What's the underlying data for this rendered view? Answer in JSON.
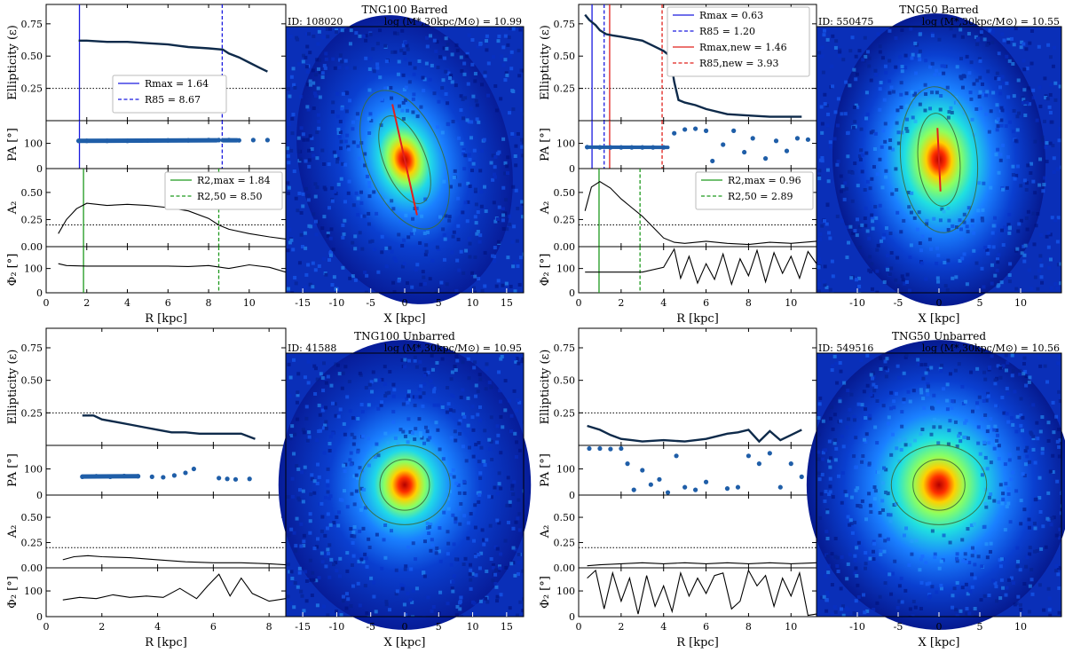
{
  "chart_data": [
    {
      "panel": "TNG100 Barred",
      "type": "line",
      "id_label": "ID: 108020",
      "mass_label": "log (M*,30kpc/M⊙) = 10.99",
      "xlabel": "R [kpc]",
      "xlim": [
        0,
        11.8
      ],
      "xticks": [
        0,
        2,
        4,
        6,
        8,
        10
      ],
      "image_xlabel": "X [kpc]",
      "image_xlim": [
        -17.5,
        17.5
      ],
      "image_xticks": [
        -15,
        -10,
        -5,
        0,
        5,
        10,
        15
      ],
      "ellipticity": {
        "ylabel": "Ellipticity (ε)",
        "ylim": [
          0,
          0.9
        ],
        "yticks": [
          0.25,
          0.5,
          0.75
        ],
        "hline": 0.25,
        "r": [
          1.6,
          2,
          3,
          4,
          5,
          6,
          6.5,
          7,
          8,
          8.7,
          9,
          9.5,
          10,
          10.5,
          10.9
        ],
        "values": [
          0.62,
          0.62,
          0.61,
          0.61,
          0.6,
          0.59,
          0.58,
          0.57,
          0.56,
          0.55,
          0.52,
          0.49,
          0.45,
          0.41,
          0.38
        ],
        "legend": [
          "Rmax = 1.64",
          "R85 = 8.67"
        ]
      },
      "pa": {
        "ylabel": "PA [°]",
        "ylim": [
          0,
          190
        ],
        "yticks": [
          0,
          100
        ],
        "r": [
          1.6,
          2,
          3,
          4,
          5,
          6,
          7,
          8,
          8.5,
          9,
          9.5,
          10.2,
          10.9
        ],
        "values": [
          110,
          110,
          110,
          110,
          111,
          112,
          112,
          113,
          113,
          113,
          112,
          113,
          113
        ]
      },
      "a2": {
        "ylabel": "A2",
        "ylim": [
          0,
          0.72
        ],
        "yticks": [
          0,
          0.25,
          0.5
        ],
        "hline": 0.2,
        "r": [
          0.6,
          1,
          1.5,
          2,
          2.5,
          3,
          4,
          5,
          6,
          7,
          8,
          8.5,
          9,
          10,
          11,
          11.8
        ],
        "values": [
          0.12,
          0.25,
          0.35,
          0.4,
          0.39,
          0.38,
          0.39,
          0.38,
          0.36,
          0.33,
          0.26,
          0.2,
          0.16,
          0.12,
          0.09,
          0.07
        ],
        "legend": [
          "R2,max = 1.84",
          "R2,50 = 8.50"
        ]
      },
      "phi2": {
        "ylabel": "Φ2 [°]",
        "ylim": [
          0,
          190
        ],
        "yticks": [
          0,
          100
        ],
        "r": [
          0.6,
          1,
          2,
          3,
          4,
          5,
          6,
          7,
          8,
          9,
          10,
          11,
          11.8
        ],
        "values": [
          120,
          112,
          110,
          110,
          110,
          110,
          110,
          108,
          112,
          100,
          115,
          105,
          85
        ]
      },
      "lines": {
        "rmax": 1.64,
        "r85": 8.67,
        "r2max": 1.84,
        "r250": 8.5
      },
      "image": {
        "bar_angle_deg": 68,
        "bar_half_len": 8.8,
        "ellipticity": 0.55
      }
    },
    {
      "panel": "TNG50 Barred",
      "type": "line",
      "id_label": "ID: 550475",
      "mass_label": "log (M*,30kpc/M⊙) = 10.55",
      "xlabel": "R [kpc]",
      "xlim": [
        0,
        11.2
      ],
      "xticks": [
        0,
        2,
        4,
        6,
        8,
        10
      ],
      "image_xlabel": "X [kpc]",
      "image_xlim": [
        -15,
        15
      ],
      "image_xticks": [
        -10,
        -5,
        0,
        5,
        10
      ],
      "ellipticity": {
        "ylabel": "Ellipticity (ε)",
        "ylim": [
          0,
          0.9
        ],
        "yticks": [
          0.25,
          0.5,
          0.75
        ],
        "hline": 0.25,
        "r": [
          0.3,
          0.5,
          0.8,
          1,
          1.3,
          1.6,
          2,
          3,
          3.5,
          4,
          4.3,
          4.5,
          4.7,
          5,
          5.5,
          6,
          7,
          8,
          9,
          10,
          10.5
        ],
        "values": [
          0.82,
          0.78,
          0.74,
          0.7,
          0.67,
          0.66,
          0.65,
          0.62,
          0.58,
          0.54,
          0.5,
          0.3,
          0.16,
          0.14,
          0.12,
          0.09,
          0.05,
          0.04,
          0.03,
          0.03,
          0.03
        ],
        "legend": [
          "Rmax = 0.63",
          "R85 = 1.20",
          "Rmax,new = 1.46",
          "R85,new = 3.93"
        ]
      },
      "pa": {
        "ylabel": "PA [°]",
        "ylim": [
          0,
          190
        ],
        "yticks": [
          0,
          100
        ],
        "r": [
          0.4,
          1,
          1.5,
          2,
          2.5,
          3,
          3.5,
          4,
          4.5,
          5,
          5.5,
          6,
          6.3,
          6.8,
          7.3,
          7.8,
          8.2,
          8.8,
          9.3,
          9.8,
          10.3,
          10.8
        ],
        "values": [
          85,
          84,
          84,
          84,
          84,
          84,
          84,
          84,
          140,
          155,
          158,
          150,
          30,
          95,
          150,
          65,
          120,
          40,
          110,
          70,
          120,
          115
        ]
      },
      "a2": {
        "ylabel": "A2",
        "ylim": [
          0,
          0.72
        ],
        "yticks": [
          0,
          0.25,
          0.5
        ],
        "hline": 0.2,
        "r": [
          0.3,
          0.6,
          1,
          1.5,
          2,
          2.5,
          3,
          3.5,
          4,
          4.5,
          5,
          6,
          7,
          8,
          9,
          10,
          11.2
        ],
        "values": [
          0.33,
          0.55,
          0.6,
          0.54,
          0.44,
          0.36,
          0.28,
          0.18,
          0.08,
          0.04,
          0.03,
          0.05,
          0.03,
          0.02,
          0.04,
          0.03,
          0.05
        ],
        "legend": [
          "R2,max = 0.96",
          "R2,50 = 2.89"
        ]
      },
      "phi2": {
        "ylabel": "Φ2 [°]",
        "ylim": [
          0,
          190
        ],
        "yticks": [
          0,
          100
        ],
        "r": [
          0.3,
          1,
          2,
          3,
          4,
          4.5,
          4.8,
          5.2,
          5.6,
          6,
          6.4,
          6.8,
          7.2,
          7.6,
          8,
          8.4,
          8.8,
          9.2,
          9.6,
          10,
          10.4,
          10.8,
          11.2
        ],
        "values": [
          85,
          85,
          85,
          85,
          105,
          180,
          60,
          150,
          40,
          120,
          55,
          160,
          35,
          140,
          70,
          175,
          45,
          165,
          80,
          150,
          60,
          170,
          120
        ]
      },
      "lines": {
        "rmax": 0.63,
        "r85": 1.2,
        "rmax_new": 1.46,
        "r85_new": 3.93,
        "r2max": 0.96,
        "r250": 2.89
      },
      "image": {
        "bar_angle_deg": 85,
        "bar_half_len": 3.9,
        "ellipticity": 0.6
      }
    },
    {
      "panel": "TNG100 Unbarred",
      "type": "line",
      "id_label": "ID: 41588",
      "mass_label": "log (M*,30kpc/M⊙) = 10.95",
      "xlabel": "R [kpc]",
      "xlim": [
        0,
        8.6
      ],
      "xticks": [
        0,
        2,
        4,
        6,
        8
      ],
      "image_xlabel": "X [kpc]",
      "image_xlim": [
        -17.5,
        17.5
      ],
      "image_xticks": [
        -15,
        -10,
        -5,
        0,
        5,
        10,
        15
      ],
      "ellipticity": {
        "ylabel": "Ellipticity (ε)",
        "ylim": [
          0,
          0.9
        ],
        "yticks": [
          0.25,
          0.5,
          0.75
        ],
        "hline": 0.25,
        "r": [
          1.3,
          1.7,
          2,
          2.5,
          3,
          3.5,
          4,
          4.5,
          5,
          5.5,
          6,
          6.5,
          7,
          7.5
        ],
        "values": [
          0.23,
          0.23,
          0.2,
          0.18,
          0.16,
          0.14,
          0.12,
          0.1,
          0.1,
          0.09,
          0.09,
          0.09,
          0.09,
          0.05
        ],
        "legend": []
      },
      "pa": {
        "ylabel": "PA [°]",
        "ylim": [
          0,
          190
        ],
        "yticks": [
          0,
          100
        ],
        "r": [
          1.3,
          1.8,
          2.3,
          2.8,
          3.3,
          3.8,
          4.2,
          4.6,
          5,
          5.3,
          6.2,
          6.5,
          6.8,
          7.3
        ],
        "values": [
          70,
          72,
          70,
          73,
          72,
          70,
          68,
          75,
          85,
          100,
          65,
          62,
          60,
          62
        ]
      },
      "a2": {
        "ylabel": "A2",
        "ylim": [
          0,
          0.72
        ],
        "yticks": [
          0,
          0.25,
          0.5
        ],
        "hline": 0.2,
        "r": [
          0.6,
          1,
          1.5,
          2,
          3,
          4,
          5,
          6,
          7,
          8,
          8.6
        ],
        "values": [
          0.08,
          0.11,
          0.12,
          0.11,
          0.1,
          0.08,
          0.06,
          0.05,
          0.05,
          0.04,
          0.03
        ],
        "legend": []
      },
      "phi2": {
        "ylabel": "Φ2 [°]",
        "ylim": [
          0,
          190
        ],
        "yticks": [
          0,
          100
        ],
        "r": [
          0.6,
          1.2,
          1.8,
          2.4,
          3,
          3.6,
          4.2,
          4.8,
          5.4,
          5.8,
          6.2,
          6.6,
          7,
          7.4,
          8,
          8.6
        ],
        "values": [
          65,
          75,
          70,
          85,
          75,
          80,
          75,
          110,
          70,
          120,
          165,
          80,
          150,
          90,
          60,
          70
        ]
      },
      "lines": {},
      "image": {
        "bar_angle_deg": 90,
        "bar_half_len": 0,
        "ellipticity": 0.1
      }
    },
    {
      "panel": "TNG50 Unbarred",
      "type": "line",
      "id_label": "ID: 549516",
      "mass_label": "log (M*,30kpc/M⊙) = 10.56",
      "xlabel": "R [kpc]",
      "xlim": [
        0,
        11.2
      ],
      "xticks": [
        0,
        2,
        4,
        6,
        8,
        10
      ],
      "image_xlabel": "X [kpc]",
      "image_xlim": [
        -15,
        15
      ],
      "image_xticks": [
        -10,
        -5,
        0,
        5,
        10
      ],
      "ellipticity": {
        "ylabel": "Ellipticity (ε)",
        "ylim": [
          0,
          0.9
        ],
        "yticks": [
          0.25,
          0.5,
          0.75
        ],
        "hline": 0.25,
        "r": [
          0.4,
          1,
          1.5,
          2,
          2.5,
          3,
          4,
          5,
          6,
          7,
          7.5,
          8,
          8.5,
          9,
          9.5,
          10,
          10.5
        ],
        "values": [
          0.15,
          0.12,
          0.08,
          0.05,
          0.04,
          0.03,
          0.04,
          0.03,
          0.05,
          0.09,
          0.1,
          0.12,
          0.03,
          0.11,
          0.04,
          0.08,
          0.12
        ],
        "legend": []
      },
      "pa": {
        "ylabel": "PA [°]",
        "ylim": [
          0,
          190
        ],
        "yticks": [
          0,
          100
        ],
        "r": [
          0.5,
          1,
          1.5,
          2,
          2.3,
          2.6,
          3,
          3.4,
          3.8,
          4.2,
          4.6,
          5,
          5.5,
          6,
          7,
          7.5,
          8,
          8.5,
          9,
          9.5,
          10,
          10.5
        ],
        "values": [
          178,
          178,
          176,
          178,
          120,
          20,
          95,
          40,
          60,
          10,
          150,
          30,
          20,
          50,
          25,
          30,
          150,
          120,
          160,
          30,
          120,
          70
        ]
      },
      "a2": {
        "ylabel": "A2",
        "ylim": [
          0,
          0.72
        ],
        "yticks": [
          0,
          0.25,
          0.5
        ],
        "hline": 0.2,
        "r": [
          0.4,
          1,
          2,
          3,
          4,
          5,
          6,
          7,
          8,
          9,
          10,
          11.2
        ],
        "values": [
          0.02,
          0.03,
          0.04,
          0.05,
          0.04,
          0.05,
          0.04,
          0.05,
          0.04,
          0.05,
          0.04,
          0.05
        ],
        "legend": []
      },
      "phi2": {
        "ylabel": "Φ2 [°]",
        "ylim": [
          0,
          190
        ],
        "yticks": [
          0,
          100
        ],
        "r": [
          0.4,
          0.8,
          1.2,
          1.6,
          2,
          2.4,
          2.8,
          3.2,
          3.6,
          4,
          4.4,
          4.8,
          5.2,
          5.6,
          6,
          6.4,
          6.8,
          7.2,
          7.6,
          8,
          8.4,
          8.8,
          9.2,
          9.6,
          10,
          10.4,
          10.8,
          11.2
        ],
        "values": [
          150,
          180,
          30,
          170,
          60,
          150,
          10,
          160,
          40,
          120,
          20,
          170,
          80,
          150,
          90,
          160,
          170,
          30,
          60,
          180,
          120,
          160,
          40,
          150,
          80,
          170,
          5,
          10
        ]
      },
      "lines": {},
      "image": {
        "bar_angle_deg": 90,
        "bar_half_len": 0,
        "ellipticity": 0.05
      }
    }
  ]
}
